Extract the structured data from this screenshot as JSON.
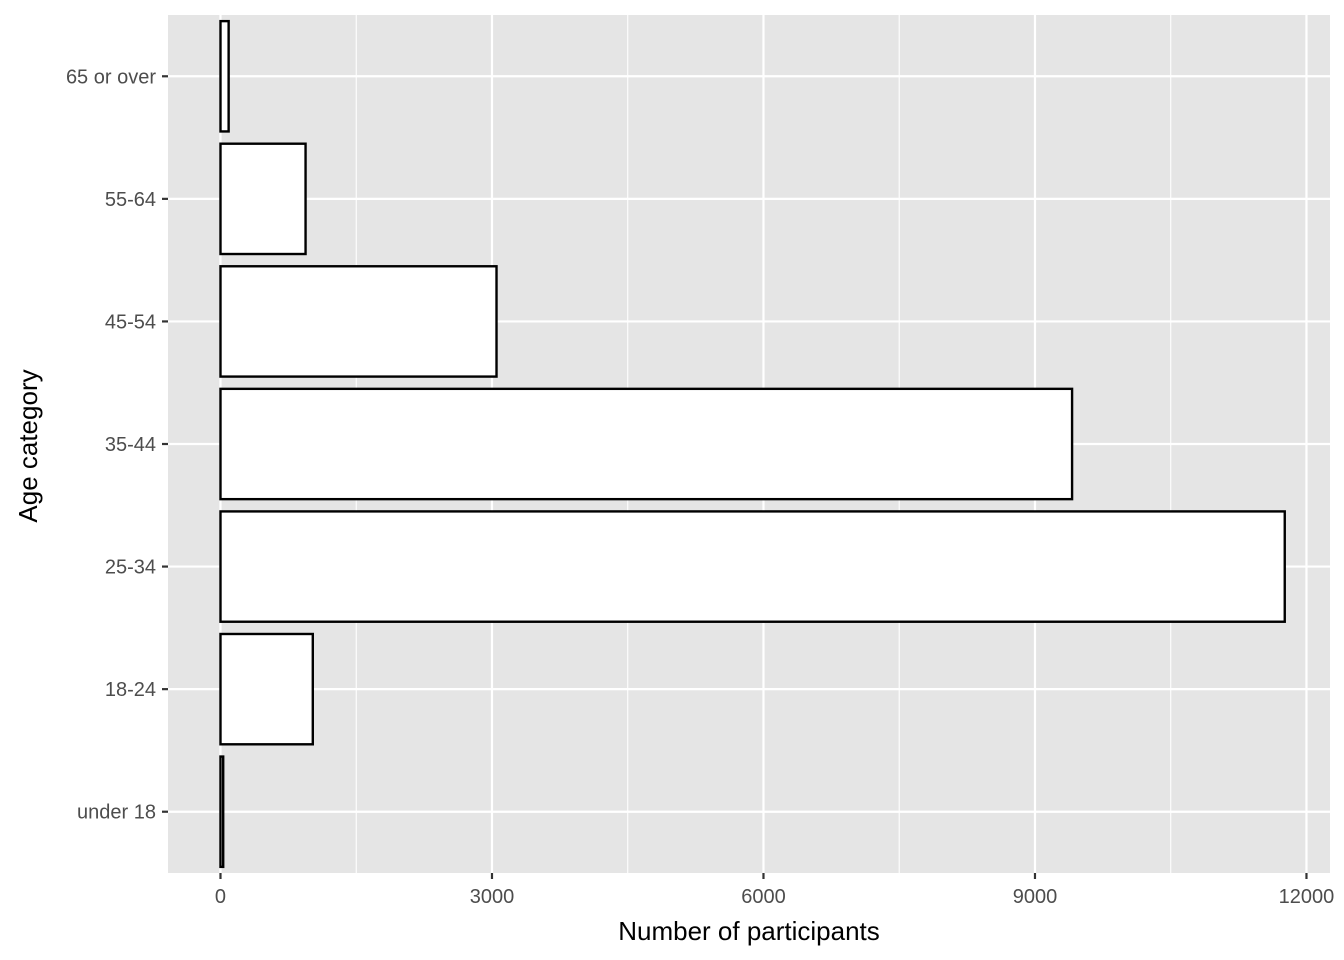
{
  "chart_data": {
    "type": "bar",
    "orientation": "horizontal",
    "categories": [
      "under 18",
      "18-24",
      "25-34",
      "35-44",
      "45-54",
      "55-64",
      "65 or over"
    ],
    "values": [
      30,
      1020,
      11760,
      9410,
      3050,
      940,
      90
    ],
    "title": "",
    "xlabel": "Number of participants",
    "ylabel": "Age category",
    "xlim": [
      -580,
      12260
    ],
    "xticks": [
      0,
      3000,
      6000,
      9000,
      12000
    ],
    "xtick_labels": [
      "0",
      "3000",
      "6000",
      "9000",
      "12000"
    ],
    "grid": true,
    "legend": "none",
    "colors": {
      "panel_background": "#e5e5e5",
      "grid": "#ffffff",
      "bar_fill": "#ffffff",
      "bar_outline": "#000000",
      "tick_label": "#4d4d4d"
    }
  }
}
